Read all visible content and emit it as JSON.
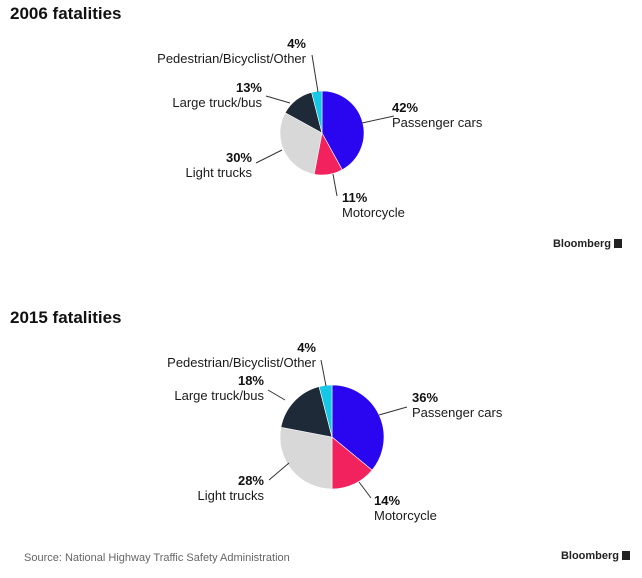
{
  "chart_data": [
    {
      "type": "pie",
      "title": "2006 fatalities",
      "categories": [
        "Passenger cars",
        "Motorcycle",
        "Light trucks",
        "Large truck/bus",
        "Pedestrian/Bicyclist/Other"
      ],
      "values": [
        42,
        11,
        30,
        13,
        4
      ],
      "value_labels": [
        "42%",
        "11%",
        "30%",
        "13%",
        "4%"
      ],
      "colors": [
        "#2a06f0",
        "#f2225f",
        "#d8d8d8",
        "#1e2a38",
        "#16c8e8"
      ]
    },
    {
      "type": "pie",
      "title": "2015 fatalities",
      "categories": [
        "Passenger cars",
        "Motorcycle",
        "Light trucks",
        "Large truck/bus",
        "Pedestrian/Bicyclist/Other"
      ],
      "values": [
        36,
        14,
        28,
        18,
        4
      ],
      "value_labels": [
        "36%",
        "14%",
        "28%",
        "18%",
        "4%"
      ],
      "colors": [
        "#2a06f0",
        "#f2225f",
        "#d8d8d8",
        "#1e2a38",
        "#16c8e8"
      ]
    }
  ],
  "brand": "Bloomberg",
  "source": "Source: National Highway Traffic Safety Administration"
}
